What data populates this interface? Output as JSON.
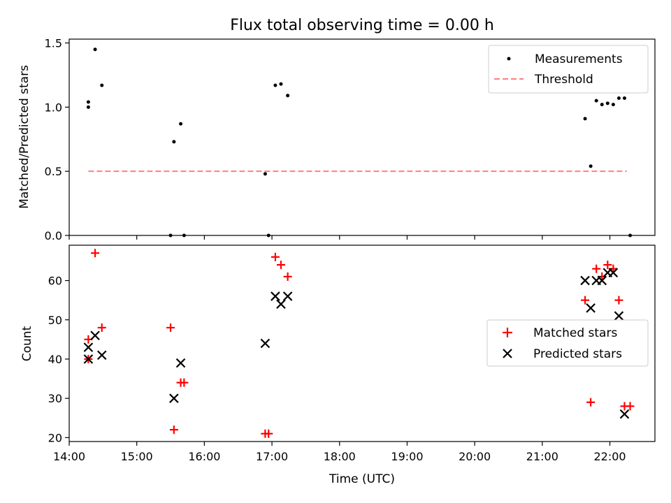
{
  "title": "Flux total observing time = 0.00 h",
  "chart_data": [
    {
      "type": "scatter",
      "ylabel": "Matched/Predicted stars",
      "xlabel": "",
      "xlim": [
        "14:00",
        "22:40"
      ],
      "ylim": [
        0,
        1.53
      ],
      "yticks": [
        "0.0",
        "0.5",
        "1.0",
        "1.5"
      ],
      "grid": false,
      "legend": "top-right",
      "series": [
        {
          "name": "Measurements",
          "marker": "dot",
          "color": "#000000",
          "points": [
            [
              "14:17",
              1.0
            ],
            [
              "14:17",
              1.04
            ],
            [
              "14:23",
              1.45
            ],
            [
              "14:29",
              1.17
            ],
            [
              "15:30",
              0.0
            ],
            [
              "15:33",
              0.73
            ],
            [
              "15:39",
              0.87
            ],
            [
              "15:42",
              0.0
            ],
            [
              "16:54",
              0.48
            ],
            [
              "16:57",
              0.0
            ],
            [
              "17:03",
              1.17
            ],
            [
              "17:08",
              1.18
            ],
            [
              "17:14",
              1.09
            ],
            [
              "21:38",
              0.91
            ],
            [
              "21:43",
              0.54
            ],
            [
              "21:48",
              1.05
            ],
            [
              "21:53",
              1.02
            ],
            [
              "21:58",
              1.03
            ],
            [
              "22:03",
              1.02
            ],
            [
              "22:08",
              1.07
            ],
            [
              "22:13",
              1.07
            ],
            [
              "22:18",
              0.0
            ]
          ]
        },
        {
          "name": "Threshold",
          "style": "dashed",
          "color": "#ff7f7f",
          "points": [
            [
              "14:17",
              0.5
            ],
            [
              "22:15",
              0.5
            ]
          ]
        }
      ]
    },
    {
      "type": "scatter",
      "ylabel": "Count",
      "xlabel": "Time (UTC)",
      "xlim": [
        "14:00",
        "22:40"
      ],
      "ylim": [
        19,
        69
      ],
      "yticks": [
        "20",
        "30",
        "40",
        "50",
        "60"
      ],
      "xticks": [
        "14:00",
        "15:00",
        "16:00",
        "17:00",
        "18:00",
        "19:00",
        "20:00",
        "21:00",
        "22:00"
      ],
      "grid": false,
      "legend": "center-right",
      "series": [
        {
          "name": "Matched stars",
          "marker": "plus",
          "color": "#ff0000",
          "points": [
            [
              "14:17",
              40
            ],
            [
              "14:17",
              45
            ],
            [
              "14:23",
              67
            ],
            [
              "14:29",
              48
            ],
            [
              "15:30",
              48
            ],
            [
              "15:33",
              22
            ],
            [
              "15:39",
              34
            ],
            [
              "15:42",
              34
            ],
            [
              "16:54",
              21
            ],
            [
              "16:57",
              21
            ],
            [
              "17:03",
              66
            ],
            [
              "17:08",
              64
            ],
            [
              "17:14",
              61
            ],
            [
              "21:38",
              55
            ],
            [
              "21:43",
              29
            ],
            [
              "21:48",
              63
            ],
            [
              "21:53",
              61
            ],
            [
              "21:58",
              64
            ],
            [
              "22:03",
              63
            ],
            [
              "22:08",
              55
            ],
            [
              "22:13",
              28
            ],
            [
              "22:18",
              28
            ]
          ]
        },
        {
          "name": "Predicted stars",
          "marker": "x",
          "color": "#000000",
          "points": [
            [
              "14:17",
              40
            ],
            [
              "14:17",
              43
            ],
            [
              "14:23",
              46
            ],
            [
              "14:29",
              41
            ],
            [
              "15:33",
              30
            ],
            [
              "15:39",
              39
            ],
            [
              "16:54",
              44
            ],
            [
              "17:03",
              56
            ],
            [
              "17:08",
              54
            ],
            [
              "17:14",
              56
            ],
            [
              "21:38",
              60
            ],
            [
              "21:43",
              53
            ],
            [
              "21:48",
              60
            ],
            [
              "21:53",
              60
            ],
            [
              "21:58",
              62
            ],
            [
              "22:03",
              62
            ],
            [
              "22:08",
              51
            ],
            [
              "22:13",
              26
            ]
          ]
        }
      ]
    }
  ]
}
